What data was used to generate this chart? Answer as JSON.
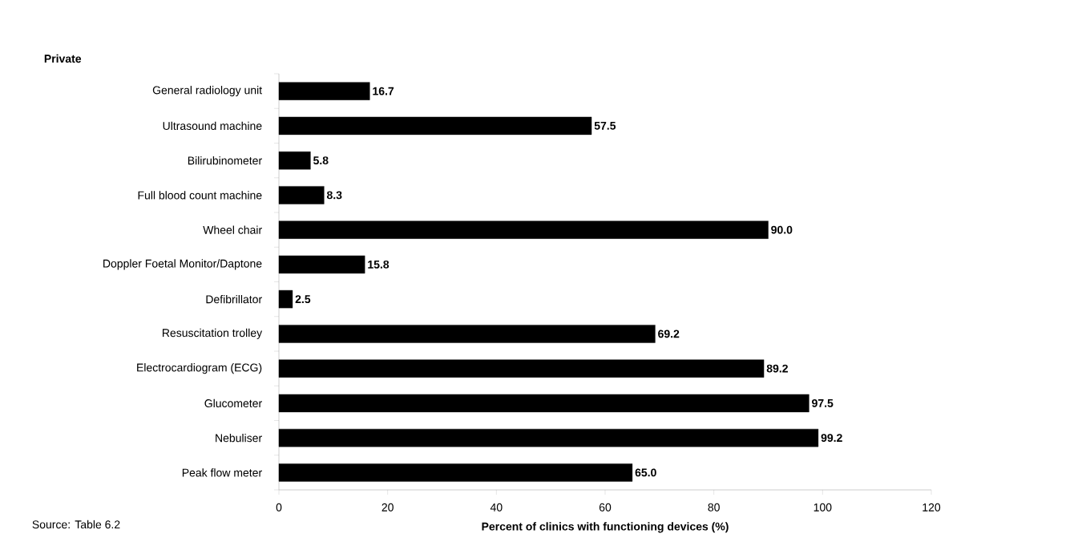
{
  "chart_data": {
    "type": "bar",
    "orientation": "horizontal",
    "title": "Private",
    "xlabel": "Percent of clinics with functioning devices (%)",
    "categories": [
      "General radiology unit",
      "Ultrasound machine",
      "Bilirubinometer",
      "Full blood count machine",
      "Wheel chair",
      "Doppler Foetal Monitor/Daptone",
      "Defibrillator",
      "Resuscitation trolley",
      "Electrocardiogram (ECG)",
      "Glucometer",
      "Nebuliser",
      "Peak flow meter"
    ],
    "values": [
      16.7,
      57.5,
      5.8,
      8.3,
      90.0,
      15.8,
      2.5,
      69.2,
      89.2,
      97.5,
      99.2,
      65.0
    ],
    "value_labels": [
      "16.7",
      "57.5",
      "5.8",
      "8.3",
      "90.0",
      "15.8",
      "2.5",
      "69.2",
      "89.2",
      "97.5",
      "99.2",
      "65.0"
    ],
    "color": "#000000",
    "xlim": [
      0,
      120
    ],
    "xticks": [
      0,
      20,
      40,
      60,
      80,
      100,
      120
    ],
    "annotations": [
      "Source: Table 6.2"
    ]
  }
}
